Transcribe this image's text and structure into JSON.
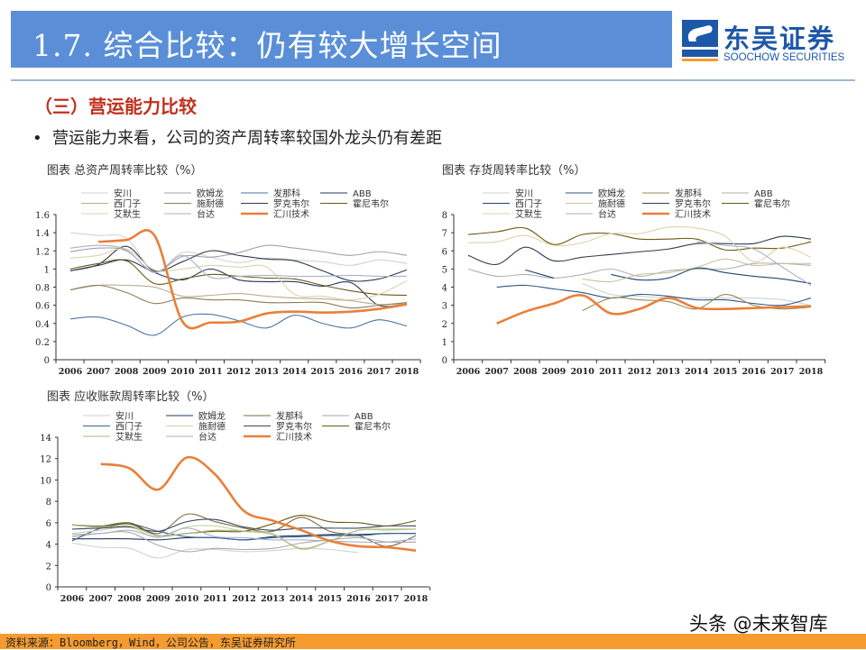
{
  "header": {
    "title": "1.7. 综合比较：仍有较大增长空间"
  },
  "logo": {
    "name_cn": "东吴证券",
    "name_en": "SOOCHOW SECURITIES",
    "abbr": "SCS",
    "brand_color": "#1d57a8"
  },
  "section_title": "（三）营运能力比较",
  "bullet": {
    "marker": "•",
    "text": "营运能力来看，公司的资产周转率较国外龙头仍有差距"
  },
  "footer": {
    "source": "资料来源：Bloomberg，Wind，公司公告，东吴证券研究所",
    "bg_color": "#f59b30"
  },
  "watermark": "头条 @未来智库",
  "chart_data": [
    {
      "type": "line",
      "title": "图表 总资产周转率比较（%）",
      "categories": [
        "2006",
        "2007",
        "2008",
        "2009",
        "2010",
        "2011",
        "2012",
        "2013",
        "2014",
        "2015",
        "2016",
        "2017",
        "2018"
      ],
      "ylim": [
        0,
        1.6
      ],
      "y_ticks": [
        "0",
        "0.2",
        "0.4",
        "0.6",
        "0.8",
        "1",
        "1.2",
        "1.4",
        "1.6"
      ],
      "grid": false,
      "legend": "top",
      "series": [
        {
          "name": "安川",
          "color": "#d2d2d2",
          "values": [
            1.4,
            1.37,
            1.34,
            0.97,
            1.18,
            1.13,
            1.07,
            1.12,
            1.1,
            1.08,
            1.04,
            1.1,
            1.06
          ]
        },
        {
          "name": "欧姆龙",
          "color": "#a3a3a3",
          "values": [
            1.19,
            1.23,
            1.2,
            0.97,
            1.14,
            1.13,
            1.18,
            1.26,
            1.23,
            1.19,
            1.15,
            1.19,
            1.15
          ]
        },
        {
          "name": "发那科",
          "color": "#4d73a6",
          "values": [
            0.45,
            0.47,
            0.38,
            0.27,
            0.47,
            0.5,
            0.43,
            0.35,
            0.49,
            0.4,
            0.35,
            0.44,
            0.37
          ]
        },
        {
          "name": "ABB",
          "color": "#1f3a5f",
          "values": [
            0.98,
            1.04,
            1.1,
            0.96,
            0.88,
            1.0,
            0.88,
            0.86,
            0.86,
            0.81,
            0.85,
            0.6,
            0.62
          ]
        },
        {
          "name": "西门子",
          "color": "#b8ad8e",
          "values": [
            0.77,
            0.82,
            0.82,
            0.8,
            0.7,
            0.71,
            0.73,
            0.7,
            0.68,
            0.67,
            0.65,
            0.61,
            0.62
          ]
        },
        {
          "name": "施耐德",
          "color": "#8c7e58",
          "values": [
            0.77,
            0.82,
            0.74,
            0.62,
            0.68,
            0.66,
            0.66,
            0.63,
            0.63,
            0.63,
            0.57,
            0.6,
            0.63
          ]
        },
        {
          "name": "罗克韦尔",
          "color": "#2f3d4d",
          "values": [
            0.98,
            1.05,
            1.25,
            0.98,
            1.08,
            1.2,
            1.15,
            1.11,
            1.09,
            0.98,
            0.87,
            0.89,
            0.99
          ]
        },
        {
          "name": "霍尼韦尔",
          "color": "#6b5a12",
          "values": [
            1.0,
            1.06,
            1.09,
            0.84,
            0.89,
            0.94,
            0.92,
            0.9,
            0.89,
            0.82,
            0.76,
            0.72,
            0.71
          ]
        },
        {
          "name": "艾默生",
          "color": "#d9d5ab",
          "values": [
            1.12,
            1.15,
            1.22,
            0.99,
            1.0,
            1.04,
            1.02,
            1.02,
            0.72,
            0.7,
            0.66,
            0.72,
            0.87
          ]
        },
        {
          "name": "台达",
          "color": "#a9b1c9",
          "values": [
            1.23,
            1.26,
            1.21,
            0.96,
            1.15,
            0.91,
            0.92,
            0.93,
            0.92,
            0.92,
            0.93,
            0.92,
            0.92
          ]
        },
        {
          "name": "汇川技术",
          "color": "#e8803a",
          "values": [
            null,
            1.3,
            1.32,
            1.37,
            0.42,
            0.41,
            0.42,
            0.51,
            0.53,
            0.52,
            0.53,
            0.56,
            0.61
          ]
        }
      ]
    },
    {
      "type": "line",
      "title": "图表 存货周转率比较（%）",
      "categories": [
        "2006",
        "2007",
        "2008",
        "2009",
        "2010",
        "2011",
        "2012",
        "2013",
        "2014",
        "2015",
        "2016",
        "2017",
        "2018"
      ],
      "ylim": [
        0,
        8
      ],
      "y_ticks": [
        "0",
        "1",
        "2",
        "3",
        "4",
        "5",
        "6",
        "7",
        "8"
      ],
      "grid": false,
      "legend": "top",
      "series": [
        {
          "name": "安川",
          "color": "#d2d2d2",
          "values": [
            null,
            null,
            null,
            null,
            4.2,
            3.6,
            3.5,
            3.4,
            3.4,
            3.4,
            3.4,
            3.3,
            3.0
          ]
        },
        {
          "name": "欧姆龙",
          "color": "#2e5585",
          "values": [
            null,
            4.0,
            4.1,
            3.9,
            3.7,
            3.4,
            3.6,
            3.5,
            3.3,
            3.3,
            3.1,
            3.0,
            3.4
          ]
        },
        {
          "name": "发那科",
          "color": "#9c8a55",
          "values": [
            null,
            null,
            null,
            null,
            2.7,
            3.4,
            3.3,
            3.2,
            2.8,
            3.6,
            3.0,
            2.8,
            2.9
          ]
        },
        {
          "name": "ABB",
          "color": "#b0b0b0",
          "values": [
            5.0,
            4.6,
            4.7,
            4.5,
            4.7,
            5.0,
            4.6,
            4.9,
            5.0,
            5.0,
            5.3,
            5.3,
            5.2
          ]
        },
        {
          "name": "西门子",
          "color": "#24466f",
          "values": [
            null,
            null,
            4.95,
            4.5,
            null,
            4.7,
            4.4,
            4.5,
            5.05,
            4.8,
            4.6,
            4.45,
            4.2
          ]
        },
        {
          "name": "施耐德",
          "color": "#c9c2a2",
          "values": [
            null,
            null,
            null,
            null,
            4.45,
            4.3,
            4.7,
            4.8,
            5.1,
            5.55,
            5.2,
            5.3,
            5.3
          ]
        },
        {
          "name": "罗克韦尔",
          "color": "#2f3d4d",
          "values": [
            5.75,
            5.25,
            6.2,
            5.45,
            5.65,
            5.8,
            5.95,
            6.1,
            6.4,
            6.4,
            6.4,
            6.8,
            6.65
          ]
        },
        {
          "name": "霍尼韦尔",
          "color": "#6b5a12",
          "values": [
            6.9,
            7.05,
            7.25,
            6.35,
            6.9,
            6.95,
            6.65,
            6.65,
            6.65,
            6.05,
            6.15,
            6.15,
            6.5
          ]
        },
        {
          "name": "艾默生",
          "color": "#d9d5ab",
          "values": [
            6.45,
            6.5,
            6.85,
            6.3,
            6.45,
            6.95,
            6.95,
            7.3,
            7.25,
            6.8,
            5.4,
            6.2,
            5.65
          ]
        },
        {
          "name": "台达",
          "color": "#a9b1c9",
          "values": [
            null,
            null,
            null,
            null,
            null,
            null,
            null,
            null,
            6.5,
            6.3,
            6.1,
            5.1,
            4.1
          ]
        },
        {
          "name": "汇川技术",
          "color": "#e8803a",
          "values": [
            null,
            2.0,
            2.65,
            3.1,
            3.55,
            2.55,
            2.8,
            3.4,
            2.85,
            2.8,
            2.85,
            2.9,
            2.95
          ]
        }
      ]
    },
    {
      "type": "line",
      "title": "图表 应收账款周转率比较（%）",
      "categories": [
        "2006",
        "2007",
        "2008",
        "2009",
        "2010",
        "2011",
        "2012",
        "2013",
        "2014",
        "2015",
        "2016",
        "2017",
        "2018"
      ],
      "ylim": [
        0,
        14
      ],
      "y_ticks": [
        "0",
        "2",
        "4",
        "6",
        "8",
        "10",
        "12",
        "14"
      ],
      "grid": false,
      "legend": "top",
      "series": [
        {
          "name": "安川",
          "color": "#d2d2d2",
          "values": [
            4.1,
            3.7,
            3.6,
            2.7,
            3.5,
            3.5,
            3.3,
            3.4,
            3.6,
            3.5,
            3.2,
            null,
            null
          ]
        },
        {
          "name": "欧姆龙",
          "color": "#1f3a5f",
          "values": [
            4.5,
            4.5,
            4.5,
            4.4,
            4.6,
            4.6,
            4.4,
            4.7,
            4.8,
            4.9,
            4.9,
            5.0,
            5.0
          ]
        },
        {
          "name": "发那科",
          "color": "#7a6e45",
          "values": [
            5.8,
            5.7,
            6.0,
            5.0,
            6.8,
            6.1,
            5.5,
            5.2,
            6.5,
            5.2,
            4.8,
            3.8,
            4.8
          ]
        },
        {
          "name": "ABB",
          "color": "#a8a8a8",
          "values": [
            4.7,
            5.0,
            5.1,
            3.9,
            3.3,
            3.6,
            3.5,
            3.6,
            4.1,
            4.4,
            4.6,
            4.2,
            4.2
          ]
        },
        {
          "name": "西门子",
          "color": "#3d6496",
          "values": [
            4.3,
            5.5,
            5.9,
            5.2,
            4.7,
            4.6,
            4.4,
            4.6,
            4.7,
            4.8,
            4.8,
            5.0,
            5.0
          ]
        },
        {
          "name": "施耐德",
          "color": "#c7d4a8",
          "values": [
            5.0,
            5.3,
            5.6,
            4.6,
            5.6,
            5.7,
            5.2,
            5.0,
            3.5,
            4.3,
            5.3,
            5.3,
            5.4
          ]
        },
        {
          "name": "罗克韦尔",
          "color": "#3a4a5c",
          "values": [
            5.4,
            5.5,
            5.6,
            5.2,
            6.1,
            6.3,
            5.6,
            5.3,
            5.5,
            5.5,
            5.5,
            5.7,
            5.7
          ]
        },
        {
          "name": "霍尼韦尔",
          "color": "#6b5a12",
          "values": [
            5.8,
            5.6,
            5.9,
            4.8,
            5.0,
            5.2,
            5.2,
            5.9,
            6.7,
            6.1,
            6.0,
            5.7,
            6.2
          ]
        },
        {
          "name": "艾默生",
          "color": "#a9b77a",
          "values": [
            5.8,
            5.6,
            5.7,
            4.8,
            5.0,
            5.3,
            5.2,
            4.9,
            3.6,
            4.3,
            5.3,
            5.4,
            5.4
          ]
        },
        {
          "name": "台达",
          "color": "#a9b1c9",
          "values": [
            4.9,
            5.0,
            5.3,
            4.7,
            5.5,
            4.7,
            4.6,
            4.4,
            4.4,
            4.3,
            4.2,
            4.2,
            4.5
          ]
        },
        {
          "name": "汇川技术",
          "color": "#e8803a",
          "values": [
            null,
            11.5,
            11.1,
            9.1,
            12.1,
            10.5,
            7.1,
            6.2,
            5.3,
            4.3,
            3.8,
            3.7,
            3.4
          ]
        }
      ]
    }
  ]
}
